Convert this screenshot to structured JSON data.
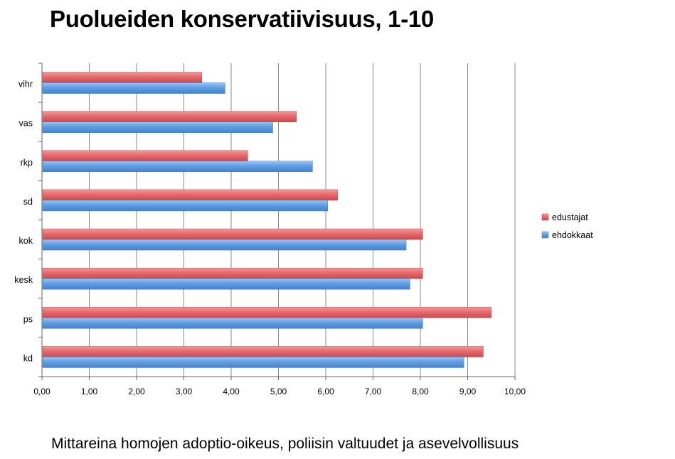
{
  "chart_data": {
    "type": "bar",
    "orientation": "horizontal",
    "title": "Puolueiden konservatiivisuus, 1-10",
    "caption": "Mittareina homojen adoptio-oikeus, poliisin valtuudet ja asevelvollisuus",
    "categories": [
      "vihr",
      "vas",
      "rkp",
      "sd",
      "kok",
      "kesk",
      "ps",
      "kd"
    ],
    "series": [
      {
        "name": "edustajat",
        "color": "#e8696b",
        "values": [
          3.38,
          5.38,
          4.35,
          6.25,
          8.05,
          8.05,
          9.5,
          9.33
        ]
      },
      {
        "name": "ehdokkaat",
        "color": "#5f9ee3",
        "values": [
          3.87,
          4.88,
          5.72,
          6.04,
          7.7,
          7.78,
          8.05,
          8.92
        ]
      }
    ],
    "xlim": [
      0,
      10
    ],
    "xticks": [
      "0,00",
      "1,00",
      "2,00",
      "3,00",
      "4,00",
      "5,00",
      "6,00",
      "7,00",
      "8,00",
      "9,00",
      "10,00"
    ],
    "grid": true,
    "legend_position": "right"
  }
}
